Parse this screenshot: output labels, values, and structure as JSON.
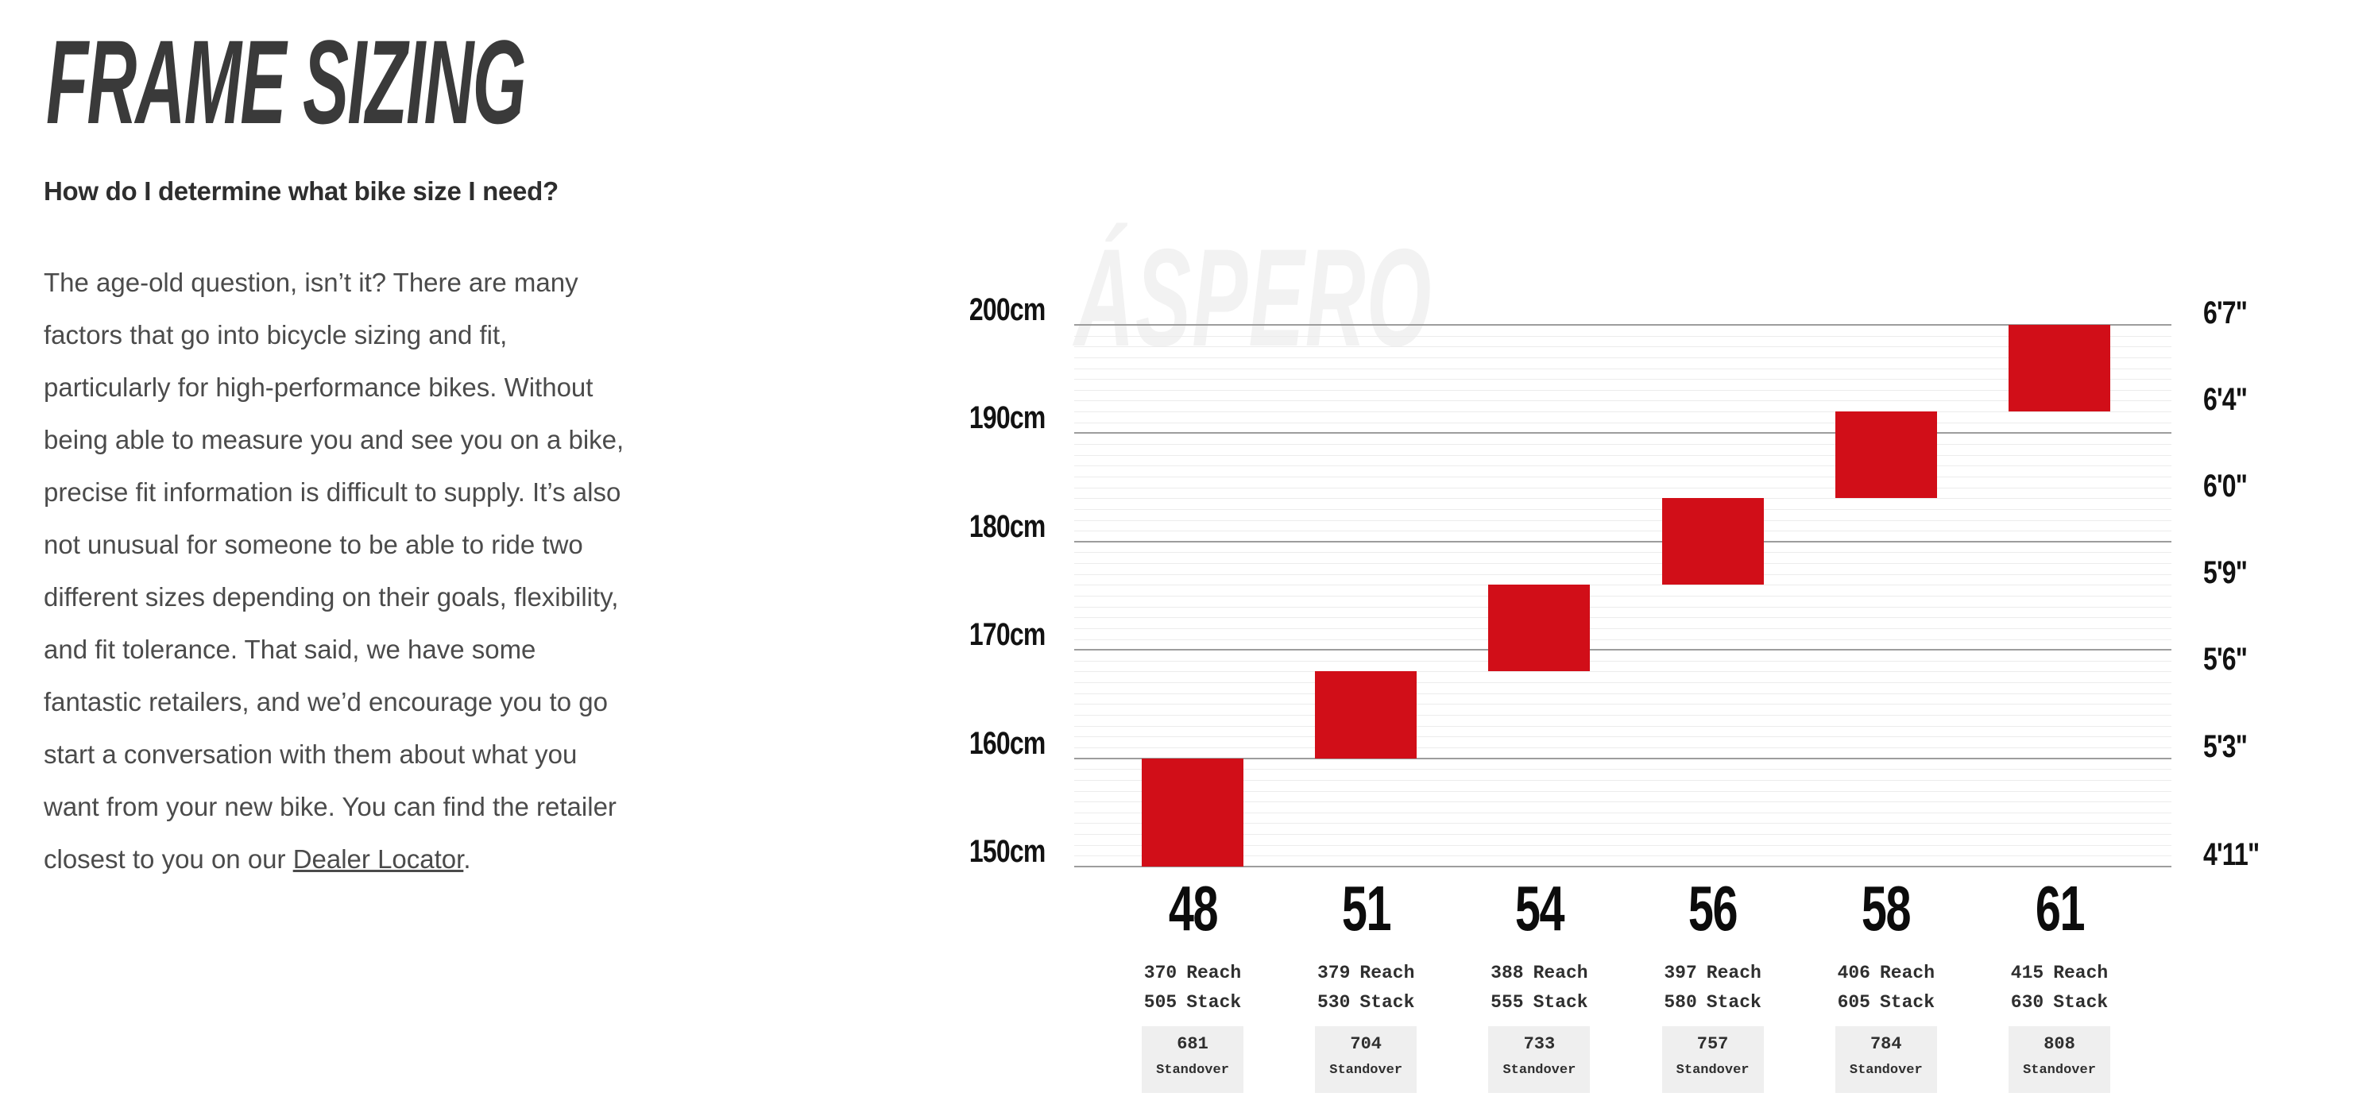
{
  "header": {
    "title": "FRAME SIZING",
    "question": "How do I determine what bike size I need?"
  },
  "body_text": {
    "lines": [
      "The age-old question, isn’t it? There are many",
      "factors that go into bicycle sizing and fit,",
      "particularly for high-performance bikes. Without",
      "being able to measure you and see you on a bike,",
      "precise fit information is difficult to supply. It’s also",
      "not unusual for someone to be able to ride two",
      "different sizes depending on their goals, flexibility,",
      "and fit tolerance. That said, we have some",
      "fantastic retailers, and we’d encourage you to go",
      "start a conversation with them about what you",
      "want from your new bike. You can find the retailer"
    ],
    "last_line": {
      "before": "closest to you on our ",
      "link": "Dealer Locator",
      "after": "."
    }
  },
  "chart_data": {
    "type": "bar",
    "watermark": "ÁSPERO",
    "bar_color": "#d10e18",
    "grid": {
      "major_color": "#9d9d9d",
      "minor_color": "#ececec",
      "major_step_cm": 10,
      "minor_step_cm": 1
    },
    "ylim_cm": [
      150,
      200
    ],
    "y_axis_left_ticks": [
      {
        "label": "200cm",
        "cm": 200
      },
      {
        "label": "190cm",
        "cm": 190
      },
      {
        "label": "180cm",
        "cm": 180
      },
      {
        "label": "170cm",
        "cm": 170
      },
      {
        "label": "160cm",
        "cm": 160
      },
      {
        "label": "150cm",
        "cm": 150
      }
    ],
    "y_axis_right_ticks": [
      {
        "label": "6'7\"",
        "cm": 200
      },
      {
        "label": "6'4\"",
        "cm": 192
      },
      {
        "label": "6'0\"",
        "cm": 184
      },
      {
        "label": "5'9\"",
        "cm": 176
      },
      {
        "label": "5'6\"",
        "cm": 168
      },
      {
        "label": "5'3\"",
        "cm": 160
      },
      {
        "label": "4'11\"",
        "cm": 150
      }
    ],
    "categories": [
      "48",
      "51",
      "54",
      "56",
      "58",
      "61"
    ],
    "column_labels": {
      "reach": "Reach",
      "stack": "Stack",
      "standover": "Standover"
    },
    "sizes": [
      {
        "label": "48",
        "rider_height_cm": [
          150,
          160
        ],
        "reach": "370",
        "stack": "505",
        "standover": "681"
      },
      {
        "label": "51",
        "rider_height_cm": [
          160,
          168
        ],
        "reach": "379",
        "stack": "530",
        "standover": "704"
      },
      {
        "label": "54",
        "rider_height_cm": [
          168,
          176
        ],
        "reach": "388",
        "stack": "555",
        "standover": "733"
      },
      {
        "label": "56",
        "rider_height_cm": [
          176,
          184
        ],
        "reach": "397",
        "stack": "580",
        "standover": "757"
      },
      {
        "label": "58",
        "rider_height_cm": [
          184,
          192
        ],
        "reach": "406",
        "stack": "605",
        "standover": "784"
      },
      {
        "label": "61",
        "rider_height_cm": [
          192,
          200
        ],
        "reach": "415",
        "stack": "630",
        "standover": "808"
      }
    ]
  }
}
